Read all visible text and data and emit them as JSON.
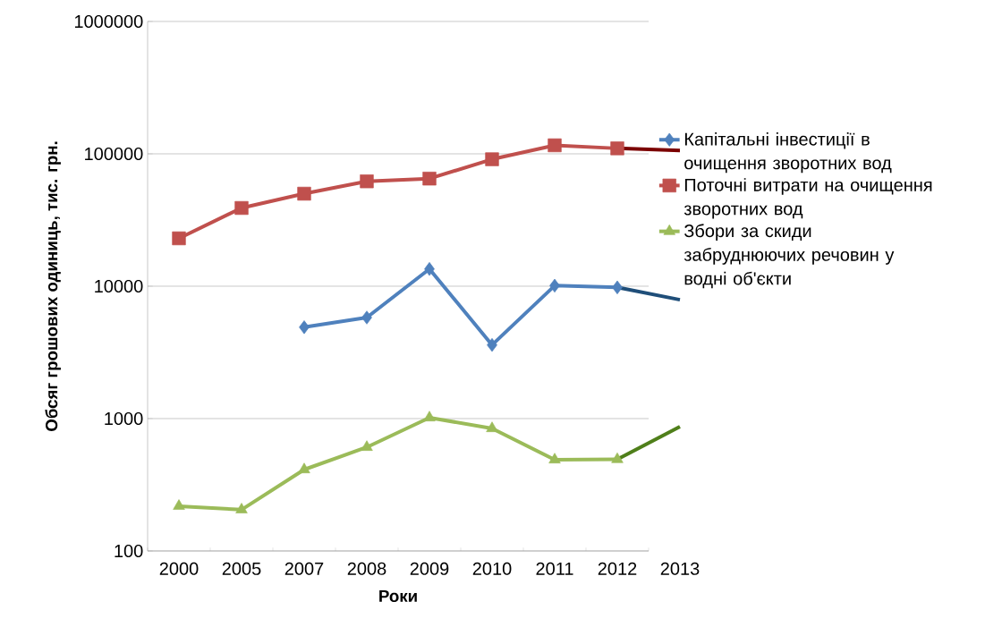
{
  "chart_data": {
    "type": "line",
    "xlabel": "Роки",
    "ylabel": "Обсяг грошових одиниць, тис. грн.",
    "categories": [
      "2000",
      "2005",
      "2007",
      "2008",
      "2009",
      "2010",
      "2011",
      "2012",
      "2013"
    ],
    "log": "y",
    "ylim": [
      100,
      1000000
    ],
    "yticks": [
      100,
      1000,
      10000,
      100000,
      1000000
    ],
    "grid": "y",
    "legend": "right",
    "series": [
      {
        "name": "Капітальні інвестиції  в очищення зворотних вод",
        "color": "#4f81bd",
        "marker": "diamond",
        "values": [
          null,
          null,
          4900,
          5800,
          13500,
          3600,
          10100,
          9800,
          null
        ]
      },
      {
        "name": "Поточні витрати на очищення зворотних вод",
        "color": "#c0504d",
        "marker": "square",
        "values": [
          23000,
          39000,
          50000,
          62000,
          65000,
          91000,
          116000,
          110000,
          null
        ]
      },
      {
        "name": "Збори за скиди забруднюючих речовин у водні об'єкти",
        "color": "#9bbb59",
        "marker": "triangle",
        "values": [
          218,
          205,
          412,
          608,
          1016,
          843,
          489,
          492,
          null
        ]
      },
      {
        "color": "#1f4e79",
        "marker": "none",
        "values": [
          null,
          null,
          null,
          null,
          null,
          null,
          null,
          9800,
          7900
        ]
      },
      {
        "color": "#7b0000",
        "marker": "none",
        "values": [
          null,
          null,
          null,
          null,
          null,
          null,
          null,
          110000,
          106000
        ]
      },
      {
        "color": "#4f7f1a",
        "marker": "none",
        "values": [
          null,
          null,
          null,
          null,
          null,
          null,
          null,
          492,
          870
        ]
      }
    ]
  }
}
